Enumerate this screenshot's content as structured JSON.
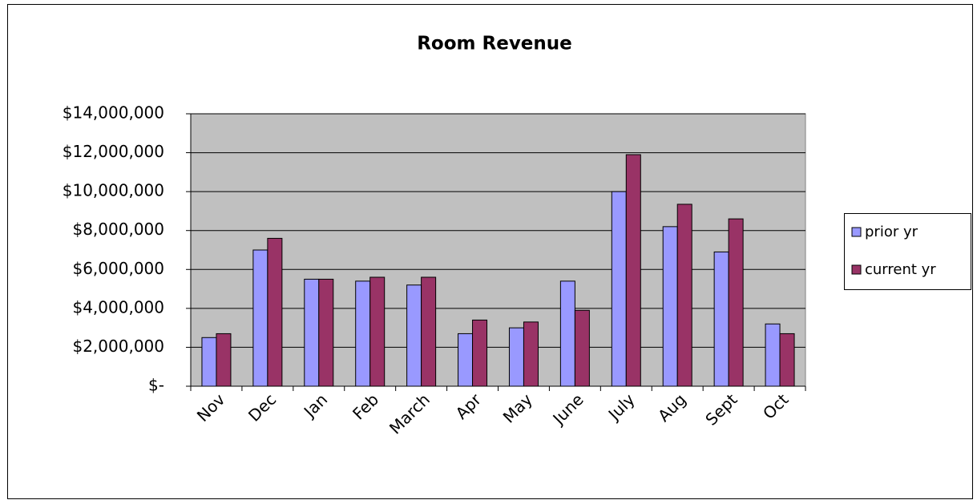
{
  "chart_data": {
    "type": "bar",
    "title": "Room Revenue",
    "categories": [
      "Nov",
      "Dec",
      "Jan",
      "Feb",
      "March",
      "Apr",
      "May",
      "June",
      "July",
      "Aug",
      "Sept",
      "Oct"
    ],
    "series": [
      {
        "name": "prior yr",
        "color": "#9999ff",
        "values": [
          2500000,
          7000000,
          5500000,
          5400000,
          5200000,
          2700000,
          3000000,
          5400000,
          10000000,
          8200000,
          6900000,
          3200000
        ]
      },
      {
        "name": "current yr",
        "color": "#993366",
        "values": [
          2700000,
          7600000,
          5500000,
          5600000,
          5600000,
          3400000,
          3300000,
          3900000,
          11900000,
          9350000,
          8600000,
          2700000
        ]
      }
    ],
    "ylim": [
      0,
      14000000
    ],
    "yticks": [
      {
        "value": 0,
        "label": "$-"
      },
      {
        "value": 2000000,
        "label": "$2,000,000"
      },
      {
        "value": 4000000,
        "label": "$4,000,000"
      },
      {
        "value": 6000000,
        "label": "$6,000,000"
      },
      {
        "value": 8000000,
        "label": "$8,000,000"
      },
      {
        "value": 10000000,
        "label": "$10,000,000"
      },
      {
        "value": 12000000,
        "label": "$12,000,000"
      },
      {
        "value": 14000000,
        "label": "$14,000,000"
      }
    ],
    "grid": true,
    "legend": "right"
  }
}
